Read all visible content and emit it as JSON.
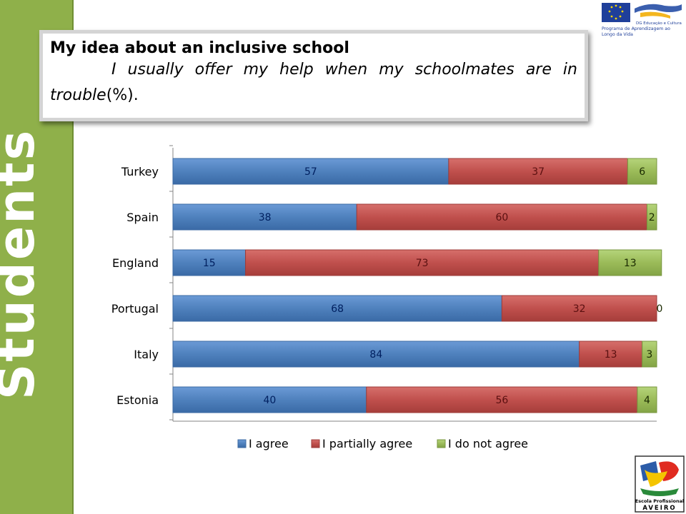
{
  "sidebar": {
    "label": "Students"
  },
  "header": {
    "title": "My idea about an inclusive school",
    "subtitle_italic": "I usually offer my help when my schoolmates are in trouble",
    "subtitle_suffix": "(%)."
  },
  "logos": {
    "eu_text_line1": "DG Educação e Cultura",
    "eu_text_line2": "Programa de Aprendizagem ao",
    "eu_text_line3": "Longo da Vida",
    "school_text_line1": "Escola Profissional",
    "school_text_line2": "AVEIRO"
  },
  "chart_data": {
    "type": "bar",
    "orientation": "horizontal",
    "stacked": true,
    "categories": [
      "Turkey",
      "Spain",
      "England",
      "Portugal",
      "Italy",
      "Estonia"
    ],
    "series": [
      {
        "name": "I agree",
        "color": "#4f81bd",
        "values": [
          57,
          38,
          15,
          68,
          84,
          40
        ]
      },
      {
        "name": "I partially agree",
        "color": "#c0504d",
        "values": [
          37,
          60,
          73,
          32,
          13,
          56
        ]
      },
      {
        "name": "I do not agree",
        "color": "#9bbb59",
        "values": [
          6,
          2,
          13,
          0,
          3,
          4
        ]
      }
    ],
    "data_labels": true,
    "legend_position": "bottom",
    "grid": false
  }
}
